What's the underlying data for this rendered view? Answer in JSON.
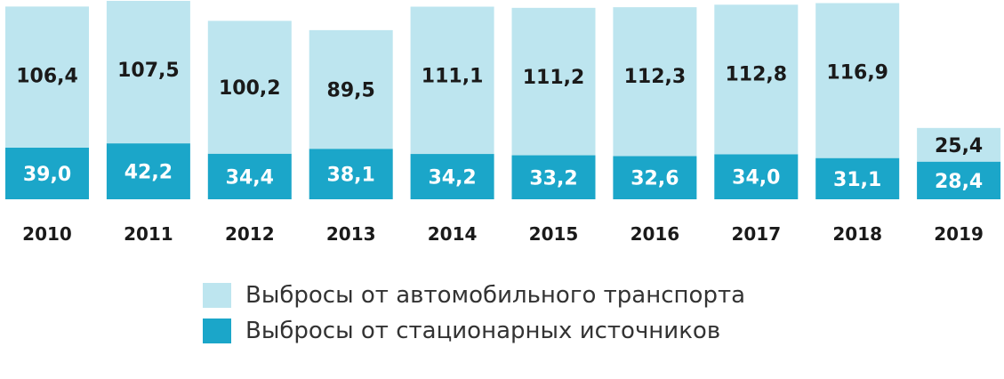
{
  "chart_data": {
    "type": "bar",
    "stacked": true,
    "categories": [
      "2010",
      "2011",
      "2012",
      "2013",
      "2014",
      "2015",
      "2016",
      "2017",
      "2018",
      "2019"
    ],
    "series": [
      {
        "name": "Выбросы от стационарных источников",
        "values": [
          39.0,
          42.2,
          34.4,
          38.1,
          34.2,
          33.2,
          32.6,
          34.0,
          31.1,
          28.4
        ],
        "labels": [
          "39,0",
          "42,2",
          "34,4",
          "38,1",
          "34,2",
          "33,2",
          "32,6",
          "34,0",
          "31,1",
          "28,4"
        ],
        "color": "#1ba6c9"
      },
      {
        "name": "Выбросы от автомобильного транспорта",
        "values": [
          106.4,
          107.5,
          100.2,
          89.5,
          111.1,
          111.2,
          112.3,
          112.8,
          116.9,
          25.4
        ],
        "labels": [
          "106,4",
          "107,5",
          "100,2",
          "89,5",
          "111,1",
          "111,2",
          "112,3",
          "112,8",
          "116,9",
          "25,4"
        ],
        "color": "#bde5ef"
      }
    ],
    "legend": [
      {
        "label": "Выбросы от автомобильного транспорта",
        "color": "#bde5ef"
      },
      {
        "label": "Выбросы от стационарных источников",
        "color": "#1ba6c9"
      }
    ],
    "legend_position": "bottom",
    "grid": false,
    "ylim": [
      0,
      160
    ]
  }
}
